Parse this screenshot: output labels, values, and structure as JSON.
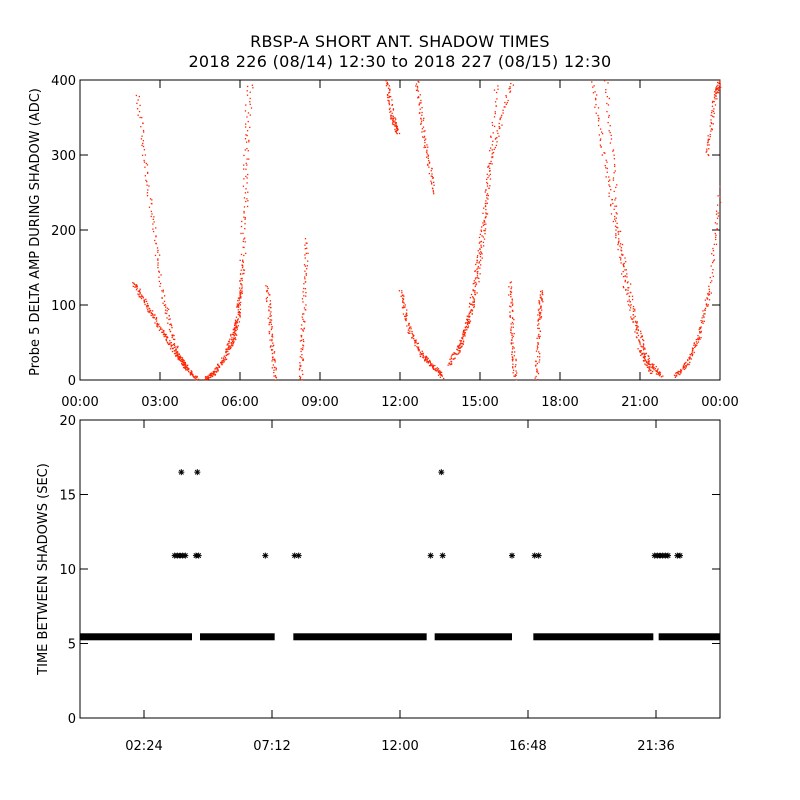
{
  "title": {
    "line1": "RBSP-A SHORT ANT. SHADOW TIMES",
    "line2": "2018 226 (08/14) 12:30 to 2018 227 (08/15) 12:30"
  },
  "colors": {
    "top_points": "#ff2200",
    "bottom_points": "#000000",
    "axis": "#000000"
  },
  "chart_data": [
    {
      "type": "scatter",
      "name": "delta-amp",
      "title": "",
      "xlabel": "",
      "ylabel": "Probe 5 DELTA AMP DURING SHADOW (ADC)",
      "xlim": [
        0,
        24
      ],
      "ylim": [
        0,
        400
      ],
      "x_unit": "hours",
      "x_ticks": [
        0,
        3,
        6,
        9,
        12,
        15,
        18,
        21,
        24
      ],
      "x_tick_labels": [
        "00:00",
        "03:00",
        "06:00",
        "09:00",
        "12:00",
        "15:00",
        "18:00",
        "21:00",
        "00:00"
      ],
      "y_ticks": [
        0,
        100,
        200,
        300,
        400
      ],
      "y_tick_labels": [
        "0",
        "100",
        "200",
        "300",
        "400"
      ],
      "curves": [
        {
          "x": [
            2.0,
            2.5,
            3.0,
            3.5,
            4.0,
            4.4
          ],
          "y": [
            130,
            100,
            70,
            40,
            15,
            2
          ]
        },
        {
          "x": [
            2.15,
            2.6,
            3.1,
            3.6,
            4.0
          ],
          "y": [
            380,
            240,
            110,
            40,
            15
          ]
        },
        {
          "x": [
            4.7,
            5.0,
            5.4,
            5.8,
            6.0,
            6.3
          ],
          "y": [
            2,
            10,
            30,
            60,
            120,
            400
          ]
        },
        {
          "x": [
            5.5,
            5.9,
            6.1,
            6.4
          ],
          "y": [
            40,
            80,
            160,
            400
          ]
        },
        {
          "x": [
            7.0,
            7.15,
            7.3
          ],
          "y": [
            125,
            60,
            0
          ]
        },
        {
          "x": [
            8.25,
            8.35,
            8.5
          ],
          "y": [
            0,
            80,
            190
          ]
        },
        {
          "x": [
            11.5,
            11.7,
            11.9
          ],
          "y": [
            400,
            350,
            330
          ]
        },
        {
          "x": [
            12.0,
            12.3,
            12.8,
            13.2,
            13.6
          ],
          "y": [
            120,
            70,
            35,
            20,
            5
          ]
        },
        {
          "x": [
            12.6,
            12.9,
            13.3
          ],
          "y": [
            400,
            320,
            250
          ]
        },
        {
          "x": [
            13.8,
            14.3,
            14.8,
            15.2,
            15.6
          ],
          "y": [
            20,
            50,
            110,
            220,
            400
          ]
        },
        {
          "x": [
            14.2,
            14.6,
            15.0,
            15.4,
            16.2
          ],
          "y": [
            40,
            90,
            180,
            300,
            400
          ]
        },
        {
          "x": [
            16.1,
            16.2,
            16.3
          ],
          "y": [
            130,
            60,
            0
          ]
        },
        {
          "x": [
            17.1,
            17.2,
            17.3
          ],
          "y": [
            0,
            80,
            120
          ]
        },
        {
          "x": [
            19.2,
            19.8,
            20.4,
            21.0,
            21.4
          ],
          "y": [
            400,
            260,
            130,
            40,
            10
          ]
        },
        {
          "x": [
            19.7,
            20.2,
            20.8,
            21.3,
            21.8
          ],
          "y": [
            400,
            200,
            80,
            25,
            5
          ]
        },
        {
          "x": [
            22.3,
            22.8,
            23.2,
            23.6,
            24.0
          ],
          "y": [
            5,
            25,
            60,
            120,
            260
          ]
        },
        {
          "x": [
            23.5,
            23.8,
            24.0
          ],
          "y": [
            300,
            380,
            400
          ]
        }
      ]
    },
    {
      "type": "scatter",
      "name": "time-between-shadows",
      "title": "",
      "xlabel": "",
      "ylabel": "TIME BETWEEN SHADOWS (SEC)",
      "xlim": [
        0,
        24
      ],
      "ylim": [
        0,
        20
      ],
      "x_unit": "hours",
      "x_ticks": [
        2.4,
        7.2,
        12.0,
        16.8,
        21.6
      ],
      "x_tick_labels": [
        "02:24",
        "07:12",
        "12:00",
        "16:48",
        "21:36"
      ],
      "y_ticks": [
        0,
        5,
        10,
        15,
        20
      ],
      "y_tick_labels": [
        "0",
        "5",
        "10",
        "15",
        "20"
      ],
      "baseline": {
        "y": 5.45,
        "segments": [
          [
            0,
            4.2
          ],
          [
            4.5,
            7.3
          ],
          [
            8.0,
            13.0
          ],
          [
            13.3,
            16.2
          ],
          [
            17.0,
            21.5
          ],
          [
            21.7,
            24.0
          ]
        ]
      },
      "points": [
        {
          "x": 3.55,
          "y": 10.9
        },
        {
          "x": 3.65,
          "y": 10.9
        },
        {
          "x": 3.75,
          "y": 10.9
        },
        {
          "x": 3.85,
          "y": 10.9
        },
        {
          "x": 3.95,
          "y": 10.9
        },
        {
          "x": 3.8,
          "y": 16.5
        },
        {
          "x": 4.4,
          "y": 16.5
        },
        {
          "x": 4.35,
          "y": 10.9
        },
        {
          "x": 4.45,
          "y": 10.9
        },
        {
          "x": 6.95,
          "y": 10.9
        },
        {
          "x": 8.05,
          "y": 10.9
        },
        {
          "x": 8.2,
          "y": 10.9
        },
        {
          "x": 13.15,
          "y": 10.9
        },
        {
          "x": 13.6,
          "y": 10.9
        },
        {
          "x": 13.55,
          "y": 16.5
        },
        {
          "x": 16.2,
          "y": 10.9
        },
        {
          "x": 17.05,
          "y": 10.9
        },
        {
          "x": 17.2,
          "y": 10.9
        },
        {
          "x": 21.55,
          "y": 10.9
        },
        {
          "x": 21.65,
          "y": 10.9
        },
        {
          "x": 21.75,
          "y": 10.9
        },
        {
          "x": 21.85,
          "y": 10.9
        },
        {
          "x": 21.95,
          "y": 10.9
        },
        {
          "x": 22.05,
          "y": 10.9
        },
        {
          "x": 22.4,
          "y": 10.9
        },
        {
          "x": 22.5,
          "y": 10.9
        }
      ]
    }
  ]
}
